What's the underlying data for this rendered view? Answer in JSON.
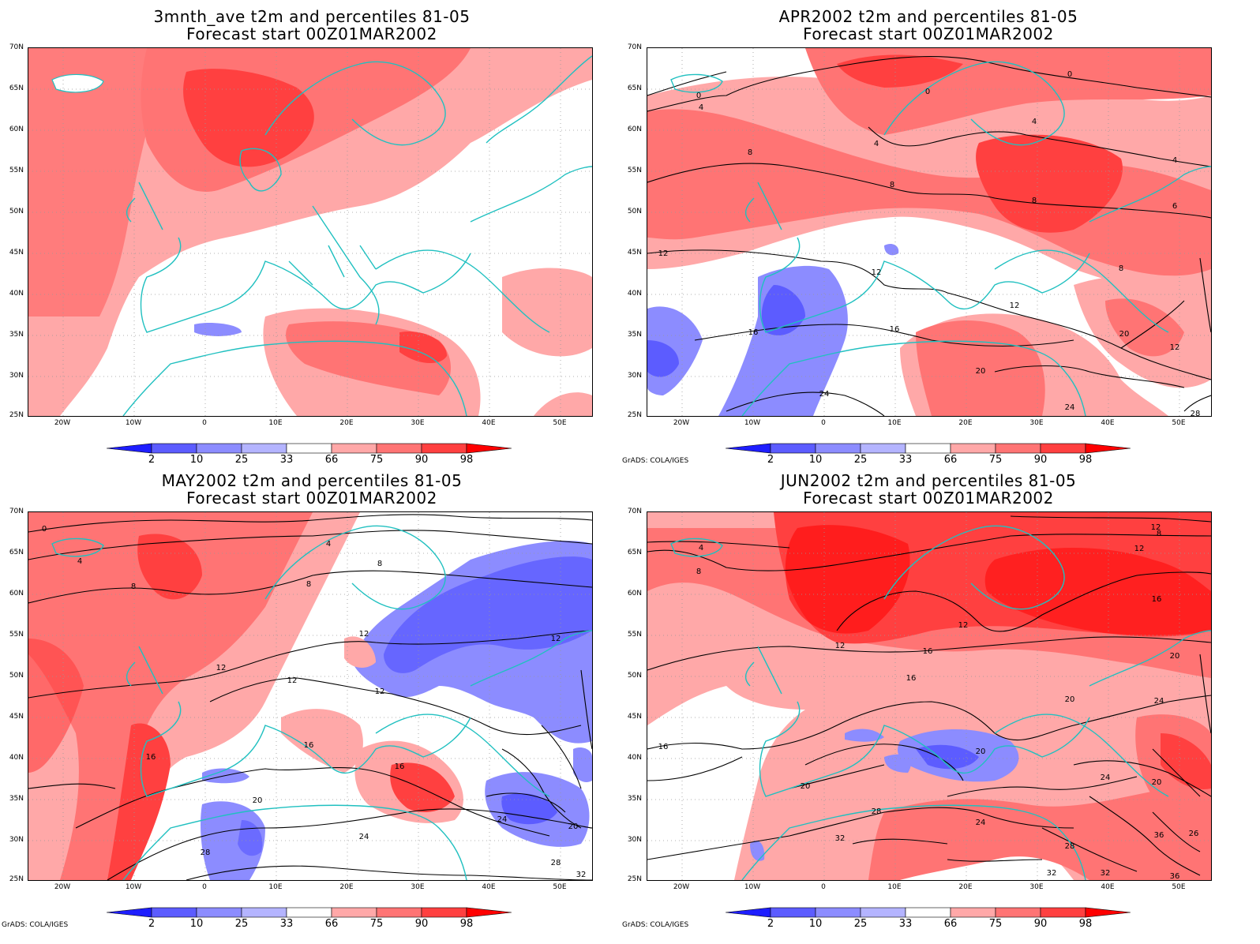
{
  "panels": [
    {
      "title_line1": "3mnth_ave t2m and percentiles 81-05",
      "title_line2": "Forecast start 00Z01MAR2002",
      "credit": ""
    },
    {
      "title_line1": "APR2002 t2m and percentiles 81-05",
      "title_line2": "Forecast start 00Z01MAR2002",
      "credit": "GrADS: COLA/IGES"
    },
    {
      "title_line1": "MAY2002 t2m and percentiles 81-05",
      "title_line2": "Forecast start 00Z01MAR2002",
      "credit": "GrADS: COLA/IGES"
    },
    {
      "title_line1": "JUN2002 t2m and percentiles 81-05",
      "title_line2": "Forecast start 00Z01MAR2002",
      "credit": "GrADS: COLA/IGES"
    }
  ],
  "axes": {
    "lat_labels": [
      "70N",
      "65N",
      "60N",
      "55N",
      "50N",
      "45N",
      "40N",
      "35N",
      "30N",
      "25N"
    ],
    "lon_labels": [
      "20W",
      "10W",
      "0",
      "10E",
      "20E",
      "30E",
      "40E",
      "50E"
    ]
  },
  "colorbar": {
    "labels": [
      "2",
      "10",
      "25",
      "33",
      "66",
      "75",
      "90",
      "98"
    ],
    "colors": [
      "#1e1eff",
      "#5c5cff",
      "#8c8cff",
      "#b4b4ff",
      "#ffffff",
      "#ffa8a8",
      "#ff7474",
      "#ff4040",
      "#ff0000"
    ]
  },
  "colors": {
    "coastline": "#20c0c0",
    "contour": "#000000",
    "grid": "#999999"
  },
  "contour_labels": {
    "panel2": [
      "0",
      "0",
      "0",
      "4",
      "4",
      "4",
      "4",
      "8",
      "8",
      "8",
      "8",
      "6",
      "12",
      "12",
      "12",
      "12",
      "16",
      "16",
      "20",
      "20",
      "24",
      "24",
      "28"
    ],
    "panel3": [
      "0",
      "4",
      "4",
      "8",
      "8",
      "8",
      "12",
      "12",
      "12",
      "12",
      "12",
      "16",
      "16",
      "16",
      "20",
      "20",
      "24",
      "24",
      "28",
      "28",
      "32"
    ],
    "panel4": [
      "4",
      "8",
      "8",
      "12",
      "12",
      "12",
      "12",
      "16",
      "16",
      "16",
      "16",
      "20",
      "20",
      "20",
      "20",
      "20",
      "24",
      "24",
      "24",
      "28",
      "28",
      "32",
      "32",
      "32",
      "36",
      "36",
      "26"
    ]
  }
}
